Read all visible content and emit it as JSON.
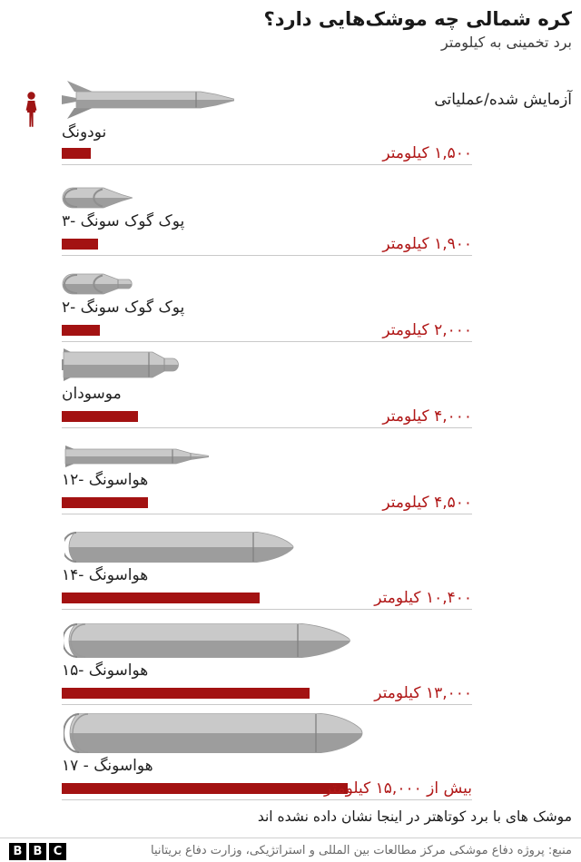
{
  "header": {
    "title": "کره شمالی چه موشک‌هایی دارد؟",
    "subtitle": "برد تخمینی به کیلومتر"
  },
  "legend": {
    "label": "آزمایش شده/عملیاتی"
  },
  "chart_data": {
    "type": "bar",
    "orientation": "horizontal",
    "title": "کره شمالی چه موشک‌هایی دارد؟",
    "subtitle": "برد تخمینی به کیلومتر",
    "unit": "کیلومتر",
    "legend": "آزمایش شده/عملیاتی",
    "bar_color": "#a31212",
    "value_color": "#b01818",
    "rows": [
      {
        "name": "نودونگ",
        "range_km": 1500,
        "more_than": false,
        "range_label": "۱,۵۰۰ کیلومتر"
      },
      {
        "name": "پوک گوک سونگ -۳",
        "range_km": 1900,
        "more_than": false,
        "range_label": "۱,۹۰۰ کیلومتر"
      },
      {
        "name": "پوک گوک سونگ -۲",
        "range_km": 2000,
        "more_than": false,
        "range_label": "۲,۰۰۰ کیلومتر"
      },
      {
        "name": "موسودان",
        "range_km": 4000,
        "more_than": false,
        "range_label": "۴,۰۰۰ کیلومتر"
      },
      {
        "name": "هواسونگ -۱۲",
        "range_km": 4500,
        "more_than": false,
        "range_label": "۴,۵۰۰ کیلومتر"
      },
      {
        "name": "هواسونگ -۱۴",
        "range_km": 10400,
        "more_than": false,
        "range_label": "۱۰,۴۰۰ کیلومتر"
      },
      {
        "name": "هواسونگ -۱۵",
        "range_km": 13000,
        "more_than": false,
        "range_label": "۱۳,۰۰۰ کیلومتر"
      },
      {
        "name": "هواسونگ - ۱۷",
        "range_km": 15000,
        "more_than": true,
        "range_label": "بیش از ۱۵,۰۰۰ کیلومتر"
      }
    ]
  },
  "footer": {
    "note": "موشک های با برد کوتاهتر در اینجا نشان داده نشده اند",
    "source": "منبع: پروژه دفاع موشکی مرکز مطالعات بین المللی و استراتژیکی، وزارت دفاع بریتانیا",
    "logo_letters": [
      "B",
      "B",
      "C"
    ]
  }
}
